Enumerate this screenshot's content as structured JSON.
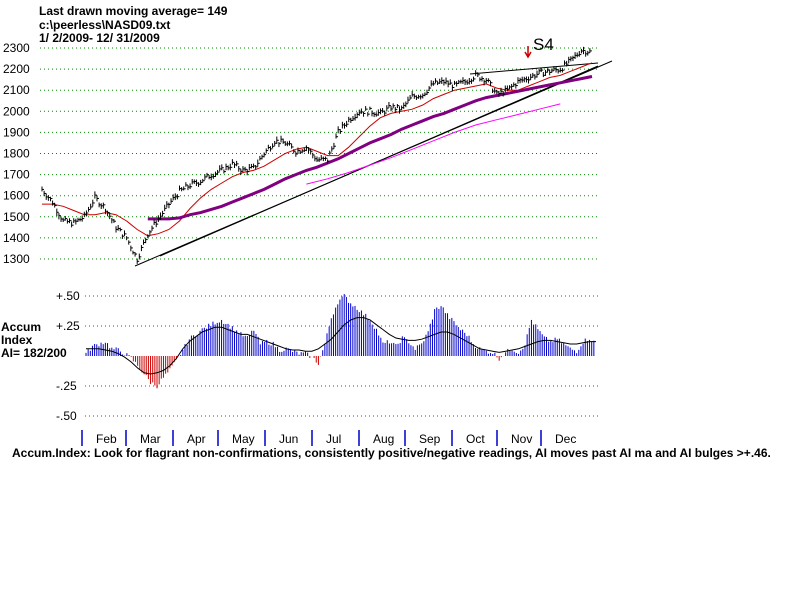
{
  "header": {
    "line1": "Last drawn moving average= 149",
    "line2": "c:\\peerless\\NASD09.txt",
    "line3": " 1/ 2/2009- 12/ 31/2009"
  },
  "colors": {
    "price": "#000000",
    "ma_short": "#cc0000",
    "ma_mid": "#800080",
    "ma_long": "#ff00ff",
    "ai_positive": "#0000cc",
    "ai_negative": "#cc0000",
    "month_tick": "#0000cc",
    "grid": "#008800",
    "signal_arrow": "#cc0000"
  },
  "signal": {
    "label": "S4",
    "date_index": 42
  },
  "ai_panel": {
    "label_line1": "Accum",
    "label_line2": "Index",
    "label_line3": "AI= 182/200"
  },
  "footer": "Accum.Index: Look for flagrant non-confirmations, consistently positive/negative readings, AI moves past AI ma and AI bulges >+.46.",
  "chart_data": [
    {
      "type": "line",
      "title": "",
      "x_axis": "month",
      "months": [
        "Feb",
        "Mar",
        "Apr",
        "May",
        "Jun",
        "Jul",
        "Aug",
        "Sep",
        "Oct",
        "Nov",
        "Dec"
      ],
      "y_ticks": [
        2300,
        2200,
        2100,
        2000,
        1900,
        1800,
        1700,
        1600,
        1500,
        1400,
        1300
      ],
      "ylim": [
        1265,
        2305
      ],
      "grid": true,
      "x": [
        "Jan 2",
        "Jan 9",
        "Jan 16",
        "Jan 23",
        "Jan 30",
        "Feb 6",
        "Feb 13",
        "Feb 20",
        "Feb 27",
        "Mar 6",
        "Mar 13",
        "Mar 20",
        "Mar 27",
        "Apr 3",
        "Apr 10",
        "Apr 17",
        "Apr 24",
        "May 1",
        "May 8",
        "May 15",
        "May 22",
        "May 29",
        "Jun 5",
        "Jun 12",
        "Jun 19",
        "Jun 26",
        "Jul 3",
        "Jul 10",
        "Jul 17",
        "Jul 24",
        "Jul 31",
        "Aug 7",
        "Aug 14",
        "Aug 21",
        "Aug 28",
        "Sep 4",
        "Sep 11",
        "Sep 18",
        "Sep 25",
        "Oct 2",
        "Oct 9",
        "Oct 16",
        "Oct 23",
        "Oct 30",
        "Nov 6",
        "Nov 13",
        "Nov 20",
        "Nov 27",
        "Dec 4",
        "Dec 11",
        "Dec 18",
        "Dec 24",
        "Dec 31"
      ],
      "series": [
        {
          "values": [
            1630,
            1570,
            1480,
            1470,
            1500,
            1590,
            1540,
            1450,
            1400,
            1300,
            1420,
            1490,
            1560,
            1620,
            1650,
            1670,
            1700,
            1720,
            1750,
            1720,
            1730,
            1800,
            1860,
            1850,
            1810,
            1830,
            1770,
            1770,
            1900,
            1960,
            2000,
            2000,
            1990,
            2020,
            2010,
            2070,
            2080,
            2130,
            2140,
            2120,
            2140,
            2170,
            2150,
            2080,
            2100,
            2140,
            2160,
            2180,
            2190,
            2200,
            2240,
            2290,
            2280
          ]
        },
        {
          "values": [
            1560,
            1560,
            1550,
            1530,
            1510,
            1510,
            1520,
            1510,
            1480,
            1440,
            1410,
            1420,
            1440,
            1480,
            1540,
            1590,
            1630,
            1660,
            1690,
            1710,
            1720,
            1740,
            1770,
            1800,
            1820,
            1830,
            1810,
            1790,
            1790,
            1830,
            1880,
            1930,
            1970,
            1990,
            2000,
            2010,
            2030,
            2060,
            2080,
            2100,
            2110,
            2120,
            2130,
            2110,
            2100,
            2100,
            2120,
            2140,
            2160,
            2170,
            2190,
            2210,
            2230
          ]
        },
        {
          "values": [
            null,
            null,
            null,
            null,
            null,
            null,
            null,
            null,
            null,
            null,
            1490,
            1490,
            1490,
            1495,
            1510,
            1520,
            1535,
            1550,
            1570,
            1590,
            1610,
            1630,
            1655,
            1680,
            1700,
            1720,
            1735,
            1755,
            1775,
            1800,
            1825,
            1850,
            1870,
            1890,
            1915,
            1935,
            1955,
            1975,
            1990,
            2010,
            2030,
            2050,
            2065,
            2075,
            2085,
            2095,
            2105,
            2115,
            2125,
            2135,
            2145,
            2155,
            2165
          ]
        },
        {
          "values": [
            null,
            null,
            null,
            null,
            null,
            null,
            null,
            null,
            null,
            null,
            null,
            null,
            null,
            null,
            null,
            null,
            null,
            null,
            null,
            null,
            null,
            null,
            null,
            null,
            null,
            null,
            null,
            null,
            null,
            null,
            null,
            null,
            null,
            null,
            null,
            null,
            null,
            null,
            null,
            null,
            null,
            null,
            null,
            null,
            null,
            null,
            null,
            null,
            null,
            null,
            null,
            null,
            null
          ]
        }
      ]
    },
    {
      "type": "bar",
      "title": "",
      "y_ticks": [
        "+.50",
        "+.25",
        "-.25",
        "-.50"
      ],
      "y_tick_values": [
        0.5,
        0.25,
        -0.25,
        -0.5
      ],
      "ylim": [
        -0.5,
        0.5
      ],
      "grid": true,
      "series": [
        {
          "values": [
            0.02,
            0.08,
            0.1,
            0.12,
            0.06,
            0.05,
            0.02,
            -0.02,
            -0.08,
            -0.15,
            -0.22,
            -0.25,
            -0.18,
            -0.12,
            -0.04,
            0.05,
            0.14,
            0.18,
            0.22,
            0.25,
            0.28,
            0.3,
            0.26,
            0.22,
            0.18,
            0.15,
            0.22,
            0.1,
            0.12,
            0.1,
            0.05,
            0.06,
            0.04,
            0.02,
            0.02,
            -0.01,
            -0.06,
            0.1,
            0.32,
            0.45,
            0.5,
            0.44,
            0.4,
            0.35,
            0.3,
            0.22,
            0.1,
            0.12,
            0.08,
            0.15,
            0.12,
            0.06,
            0.1,
            0.2,
            0.38,
            0.42,
            0.34,
            0.28,
            0.22,
            0.18,
            0.1,
            0.06,
            0.04,
            0.03,
            -0.02,
            0.03,
            0.06,
            0.03,
            0.1,
            0.3,
            0.22,
            0.15,
            0.12,
            0.14,
            0.1,
            0.06,
            0.04,
            0.12,
            0.15,
            0.1
          ]
        },
        {
          "values": [
            0.06,
            0.06,
            0.06,
            0.05,
            0.04,
            0.02,
            -0.01,
            -0.05,
            -0.1,
            -0.14,
            -0.15,
            -0.14,
            -0.12,
            -0.08,
            -0.02,
            0.06,
            0.12,
            0.16,
            0.2,
            0.22,
            0.24,
            0.24,
            0.22,
            0.2,
            0.18,
            0.18,
            0.16,
            0.14,
            0.12,
            0.1,
            0.08,
            0.06,
            0.05,
            0.05,
            0.04,
            0.04,
            0.06,
            0.1,
            0.14,
            0.2,
            0.26,
            0.3,
            0.32,
            0.32,
            0.3,
            0.26,
            0.22,
            0.18,
            0.15,
            0.14,
            0.13,
            0.13,
            0.14,
            0.16,
            0.18,
            0.2,
            0.2,
            0.18,
            0.15,
            0.12,
            0.09,
            0.06,
            0.05,
            0.04,
            0.03,
            0.04,
            0.05,
            0.06,
            0.08,
            0.1,
            0.12,
            0.13,
            0.13,
            0.12,
            0.11,
            0.1,
            0.1,
            0.11,
            0.12,
            0.12
          ]
        }
      ]
    }
  ]
}
